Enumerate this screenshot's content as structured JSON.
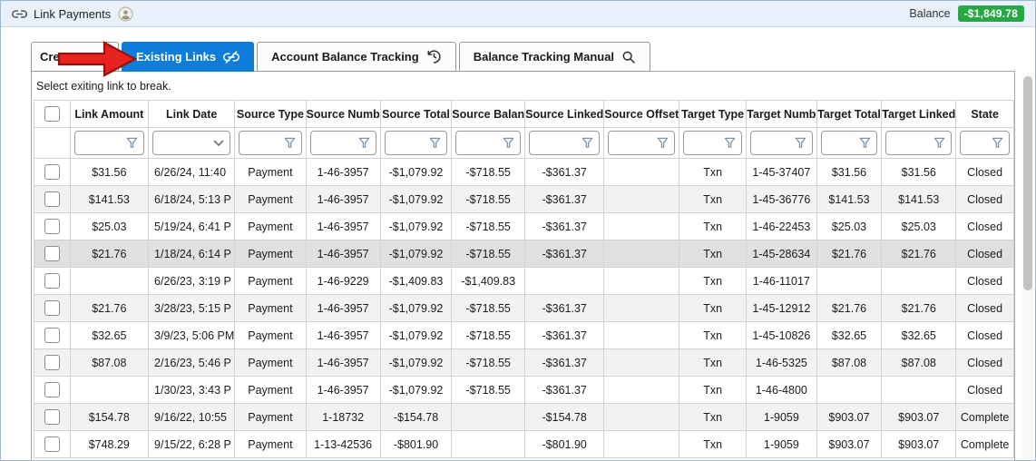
{
  "window": {
    "title": "Link Payments",
    "balance_label": "Balance",
    "balance_value": "-$1,849.78"
  },
  "colors": {
    "active_tab": "#0d7dd9",
    "balance_badge": "#28a745",
    "arrow": "#e8231d",
    "row_alt": "#f2f2f2",
    "row_highlight": "#e0e0e0"
  },
  "tabs": [
    {
      "label": "Creat",
      "active": false,
      "icon": null
    },
    {
      "label": "Existing Links",
      "active": true,
      "icon": "broken-link"
    },
    {
      "label": "Account Balance Tracking",
      "active": false,
      "icon": "history"
    },
    {
      "label": "Balance Tracking Manual",
      "active": false,
      "icon": "search"
    }
  ],
  "panel": {
    "instruction": "Select exiting link to break."
  },
  "table": {
    "columns": [
      {
        "label": "Link Amount",
        "width": 92,
        "filter": "funnel"
      },
      {
        "label": "Link Date",
        "width": 90,
        "filter": "dropdown"
      },
      {
        "label": "Source Type",
        "width": 80,
        "filter": "funnel"
      },
      {
        "label": "Source Numb",
        "width": 78,
        "filter": "funnel"
      },
      {
        "label": "Source Total",
        "width": 80,
        "filter": "funnel"
      },
      {
        "label": "Source Balan",
        "width": 76,
        "filter": "funnel"
      },
      {
        "label": "Source Linked",
        "width": 76,
        "filter": "funnel"
      },
      {
        "label": "Source Offset",
        "width": 76,
        "filter": "funnel"
      },
      {
        "label": "Target Type",
        "width": 76,
        "filter": "funnel"
      },
      {
        "label": "Target Numb",
        "width": 78,
        "filter": "funnel"
      },
      {
        "label": "Target Total",
        "width": 72,
        "filter": "funnel"
      },
      {
        "label": "Target Linked",
        "width": 70,
        "filter": "funnel"
      },
      {
        "label": "State",
        "width": 69,
        "filter": "funnel"
      }
    ],
    "checkbox_col_width": 52,
    "highlighted_row_index": 3,
    "rows": [
      {
        "checked": false,
        "cells": [
          "$31.56",
          "6/26/24, 11:40",
          "Payment",
          "1-46-3957",
          "-$1,079.92",
          "-$718.55",
          "-$361.37",
          "",
          "Txn",
          "1-45-37407",
          "$31.56",
          "$31.56",
          "Closed"
        ]
      },
      {
        "checked": false,
        "cells": [
          "$141.53",
          "6/18/24, 5:13 P",
          "Payment",
          "1-46-3957",
          "-$1,079.92",
          "-$718.55",
          "-$361.37",
          "",
          "Txn",
          "1-45-36776",
          "$141.53",
          "$141.53",
          "Closed"
        ]
      },
      {
        "checked": false,
        "cells": [
          "$25.03",
          "5/19/24, 6:41 P",
          "Payment",
          "1-46-3957",
          "-$1,079.92",
          "-$718.55",
          "-$361.37",
          "",
          "Txn",
          "1-46-22453",
          "$25.03",
          "$25.03",
          "Closed"
        ]
      },
      {
        "checked": false,
        "cells": [
          "$21.76",
          "1/18/24, 6:14 P",
          "Payment",
          "1-46-3957",
          "-$1,079.92",
          "-$718.55",
          "-$361.37",
          "",
          "Txn",
          "1-45-28634",
          "$21.76",
          "$21.76",
          "Closed"
        ]
      },
      {
        "checked": false,
        "cells": [
          "",
          "6/26/23, 3:19 P",
          "Payment",
          "1-46-9229",
          "-$1,409.83",
          "-$1,409.83",
          "",
          "",
          "Txn",
          "1-46-11017",
          "",
          "",
          "Closed"
        ]
      },
      {
        "checked": false,
        "cells": [
          "$21.76",
          "3/28/23, 5:15 P",
          "Payment",
          "1-46-3957",
          "-$1,079.92",
          "-$718.55",
          "-$361.37",
          "",
          "Txn",
          "1-45-12912",
          "$21.76",
          "$21.76",
          "Closed"
        ]
      },
      {
        "checked": false,
        "cells": [
          "$32.65",
          "3/9/23, 5:06 PM",
          "Payment",
          "1-46-3957",
          "-$1,079.92",
          "-$718.55",
          "-$361.37",
          "",
          "Txn",
          "1-45-10826",
          "$32.65",
          "$32.65",
          "Closed"
        ]
      },
      {
        "checked": false,
        "cells": [
          "$87.08",
          "2/16/23, 5:46 P",
          "Payment",
          "1-46-3957",
          "-$1,079.92",
          "-$718.55",
          "-$361.37",
          "",
          "Txn",
          "1-46-5325",
          "$87.08",
          "$87.08",
          "Closed"
        ]
      },
      {
        "checked": false,
        "cells": [
          "",
          "1/30/23, 3:43 P",
          "Payment",
          "1-46-3957",
          "-$1,079.92",
          "-$718.55",
          "-$361.37",
          "",
          "Txn",
          "1-46-4800",
          "",
          "",
          "Closed"
        ]
      },
      {
        "checked": false,
        "cells": [
          "$154.78",
          "9/16/22, 10:55",
          "Payment",
          "1-18732",
          "-$154.78",
          "",
          "-$154.78",
          "",
          "Txn",
          "1-9059",
          "$903.07",
          "$903.07",
          "Complete"
        ]
      },
      {
        "checked": false,
        "cells": [
          "$748.29",
          "9/15/22, 6:28 P",
          "Payment",
          "1-13-42536",
          "-$801.90",
          "",
          "-$801.90",
          "",
          "Txn",
          "1-9059",
          "$903.07",
          "$903.07",
          "Complete"
        ]
      }
    ]
  }
}
